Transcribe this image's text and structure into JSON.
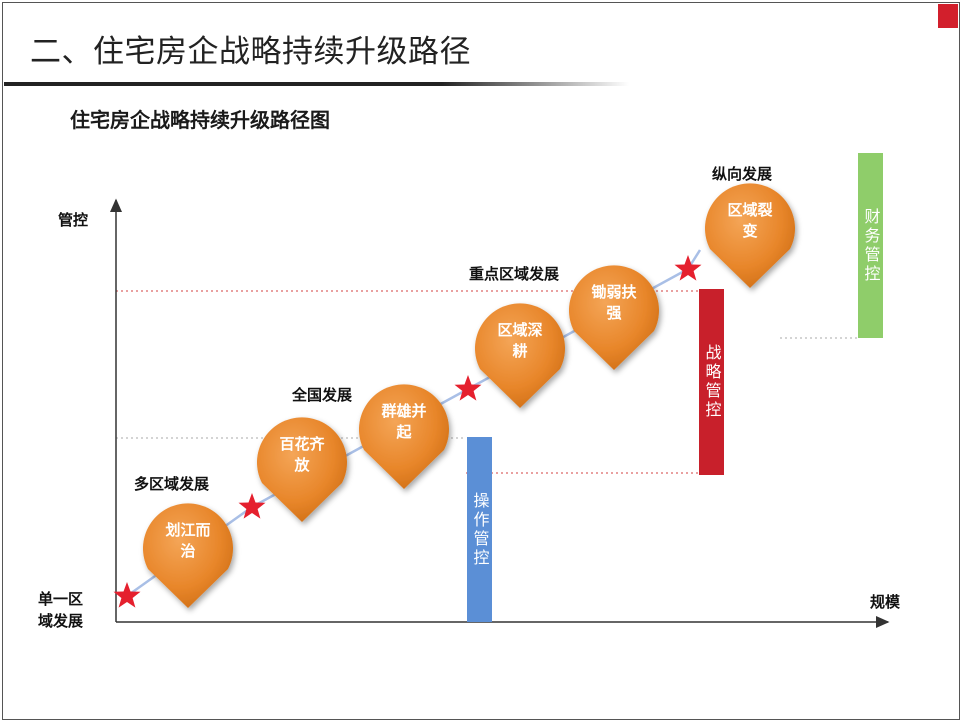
{
  "slide": {
    "title": "二、住宅房企战略持续升级路径"
  },
  "diagram": {
    "title": "住宅房企战略持续升级路径图",
    "axis_y_label": "管控",
    "axis_x_label": "规模",
    "origin_label_line1": "单一区",
    "origin_label_line2": "域发展",
    "stage_labels": [
      "多区域发展",
      "全国发展",
      "重点区域发展",
      "纵向发展"
    ],
    "blobs": [
      {
        "line1": "划江而",
        "line2": "治"
      },
      {
        "line1": "百花齐",
        "line2": "放"
      },
      {
        "line1": "群雄并",
        "line2": "起"
      },
      {
        "line1": "区域深",
        "line2": "耕"
      },
      {
        "line1": "锄弱扶",
        "line2": "强"
      },
      {
        "line1": "区域裂",
        "line2": "变"
      }
    ],
    "bars": [
      {
        "label": "操作管控",
        "color": "#5b8fd6"
      },
      {
        "label": "战略管控",
        "color": "#c8202b"
      },
      {
        "label": "财务管控",
        "color": "#8fcd6a"
      }
    ],
    "colors": {
      "blob": "#e8862a",
      "star": "#e5202e",
      "path": "#a9bfe6"
    }
  }
}
